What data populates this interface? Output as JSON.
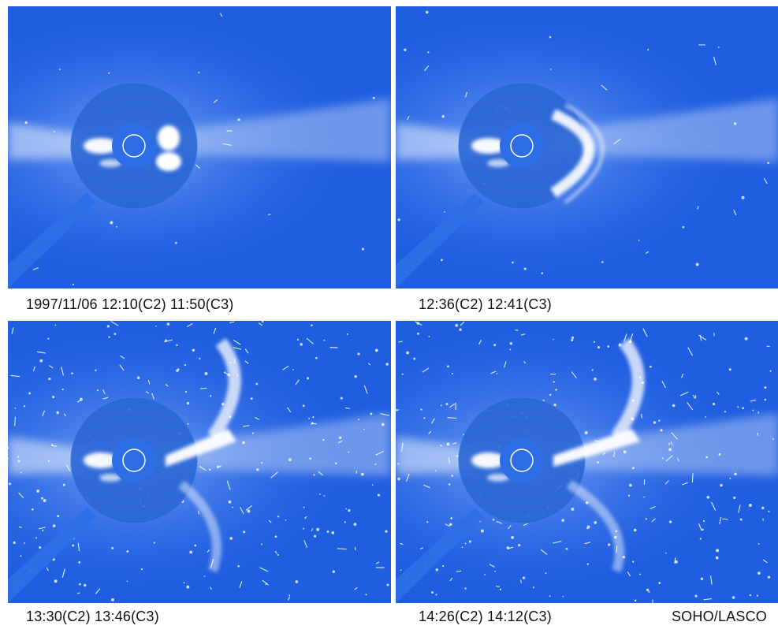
{
  "colors": {
    "sky": "#1f5ee0",
    "disk": "#2a66d4",
    "occulter": "#2d6ee6",
    "corona": "#ffffff",
    "caption": "#111111"
  },
  "panels": [
    {
      "id": "p1",
      "caption": "1997/11/06 12:10(C2) 11:50(C3)",
      "cme_stage": 1,
      "stars": 0.08
    },
    {
      "id": "p2",
      "caption": "12:36(C2) 12:41(C3)",
      "cme_stage": 2,
      "stars": 0.15
    },
    {
      "id": "p3",
      "caption": "13:30(C2) 13:46(C3)",
      "cme_stage": 3,
      "stars": 1
    },
    {
      "id": "p4",
      "caption": "14:26(C2) 14:12(C3)",
      "cme_stage": 4,
      "stars": 1
    }
  ],
  "credit": "SOHO/LASCO"
}
